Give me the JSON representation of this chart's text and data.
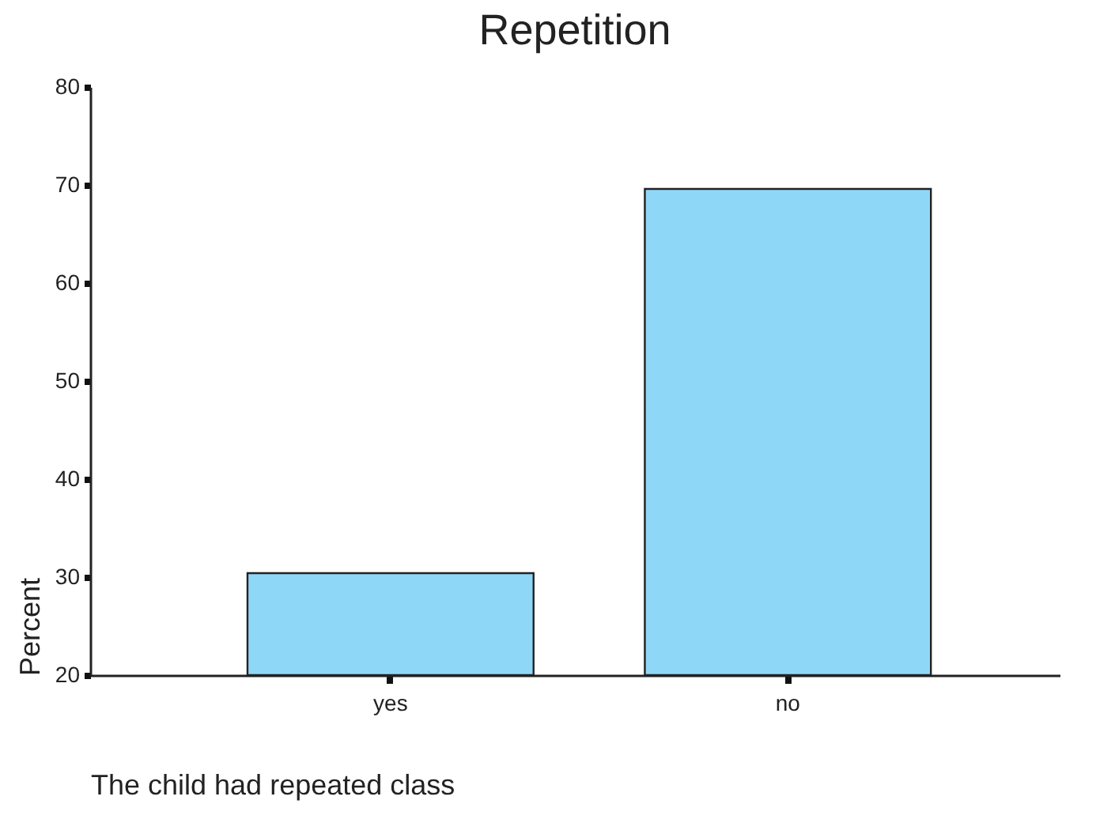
{
  "chart_data": {
    "type": "bar",
    "title": "Repetition",
    "xlabel": "The child had repeated class",
    "ylabel": "Percent",
    "categories": [
      "yes",
      "no"
    ],
    "values": [
      30.4,
      69.6
    ],
    "color": "#8fd7f6",
    "ylim": [
      20,
      80
    ],
    "yticks": [
      20,
      30,
      40,
      50,
      60,
      70,
      80
    ],
    "grid": false
  }
}
